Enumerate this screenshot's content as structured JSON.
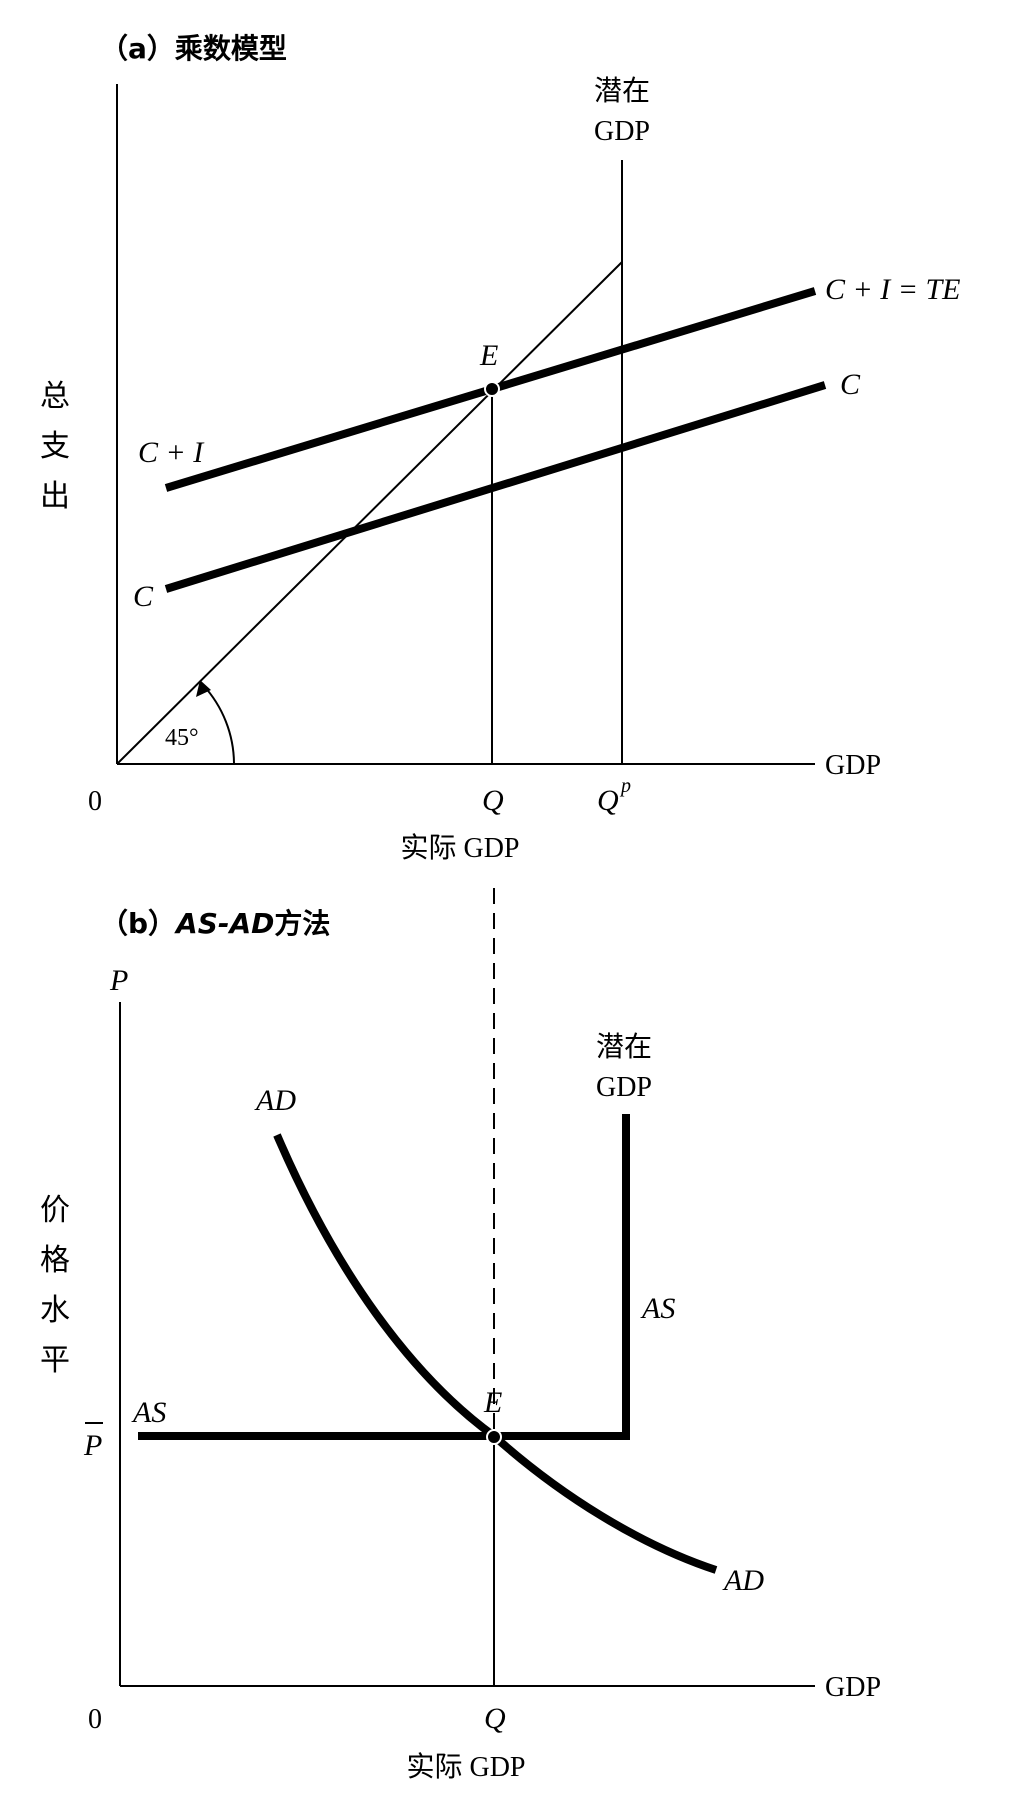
{
  "panel_a": {
    "title": "（a）乘数模型",
    "y_axis_label": [
      "总",
      "支",
      "出"
    ],
    "x_axis_label": "GDP",
    "origin": "0",
    "potential_label_line1": "潜在",
    "potential_label_line2": "GDP",
    "angle_label": "45°",
    "point_label": "E",
    "q_label": "Q",
    "qp_label": "Q",
    "qp_superscript": "p",
    "x_caption": "实际 GDP",
    "curve_te_label_left": "C + I",
    "curve_te_label_right": "C + I = TE",
    "curve_c_label_left": "C",
    "curve_c_label_right": "C"
  },
  "panel_b": {
    "title_prefix": "（b）",
    "title_italic": "AS-AD",
    "title_suffix": "方法",
    "y_axis_label": [
      "价",
      "格",
      "水",
      "平"
    ],
    "y_axis_symbol": "P",
    "p_bar_label": "P",
    "x_axis_label": "GDP",
    "origin": "0",
    "potential_label_line1": "潜在",
    "potential_label_line2": "GDP",
    "point_label": "E",
    "q_label": "Q",
    "x_caption": "实际 GDP",
    "ad_label_top": "AD",
    "ad_label_bottom": "AD",
    "as_label_left": "AS",
    "as_label_right": "AS"
  }
}
